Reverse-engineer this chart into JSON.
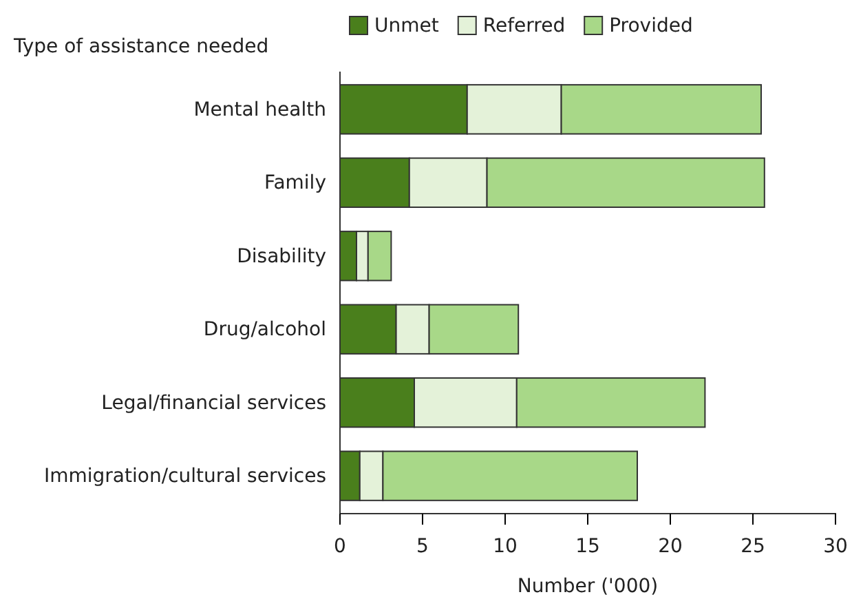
{
  "chart_data": {
    "type": "bar",
    "orientation": "horizontal",
    "stacked": true,
    "ylabel": "Type of assistance needed",
    "xlabel": "Number ('000)",
    "categories": [
      "Mental health",
      "Family",
      "Disability",
      "Drug/alcohol",
      "Legal/financial services",
      "Immigration/cultural services"
    ],
    "series": [
      {
        "name": "Unmet",
        "color": "#4a7f1c",
        "values": [
          7.7,
          4.2,
          1.0,
          3.4,
          4.5,
          1.2
        ]
      },
      {
        "name": "Referred",
        "color": "#e4f2d9",
        "values": [
          5.7,
          4.7,
          0.7,
          2.0,
          6.2,
          1.4
        ]
      },
      {
        "name": "Provided",
        "color": "#a8d888",
        "values": [
          12.1,
          16.8,
          1.4,
          5.4,
          11.4,
          15.4
        ]
      }
    ],
    "xlim": [
      0,
      30
    ],
    "xticks": [
      0,
      5,
      10,
      15,
      20,
      25,
      30
    ],
    "legend": "top",
    "grid": false
  }
}
